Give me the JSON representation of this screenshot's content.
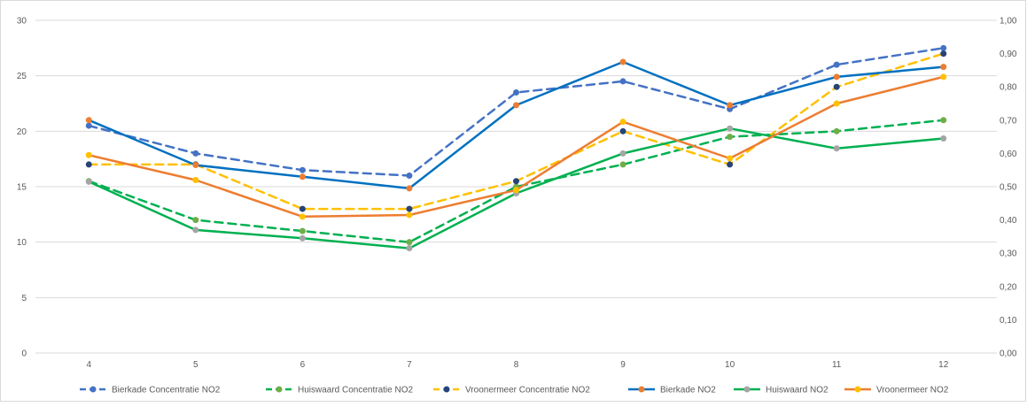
{
  "chart_data": {
    "type": "line",
    "title": "",
    "xlabel": "",
    "ylabel": "",
    "x": [
      4,
      5,
      6,
      7,
      8,
      9,
      10,
      11,
      12
    ],
    "y_left": {
      "ylim": [
        0,
        30
      ],
      "ticks": [
        "0",
        "5",
        "10",
        "15",
        "20",
        "25",
        "30"
      ]
    },
    "y_right": {
      "ylim": [
        0,
        1.0
      ],
      "ticks": [
        "0,00",
        "0,10",
        "0,20",
        "0,30",
        "0,40",
        "0,50",
        "0,60",
        "0,70",
        "0,80",
        "0,90",
        "1,00"
      ]
    },
    "grid": true,
    "legend_position": "bottom",
    "series": [
      {
        "name": "Bierkade Concentratie NO2",
        "axis": "left",
        "style": "dashed",
        "line_color": "#4472C4",
        "marker_color": "#4472C4",
        "values": [
          20.5,
          18,
          16.5,
          16,
          23.5,
          24.5,
          22,
          26,
          27.5
        ]
      },
      {
        "name": "Huiswaard Concentratie NO2",
        "axis": "left",
        "style": "dashed",
        "line_color": "#00B050",
        "marker_color": "#70AD47",
        "values": [
          15.5,
          12,
          11,
          10,
          15,
          17,
          19.5,
          20,
          21
        ]
      },
      {
        "name": "Vroonermeer Concentratie NO2",
        "axis": "left",
        "style": "dashed",
        "line_color": "#FFC000",
        "marker_color": "#264478",
        "values": [
          17,
          17,
          13,
          13,
          15.5,
          20,
          17,
          24,
          27
        ]
      },
      {
        "name": "Bierkade NO2",
        "axis": "right",
        "style": "solid",
        "line_color": "#0070C0",
        "marker_color": "#ED7D31",
        "values": [
          0.7,
          0.565,
          0.53,
          0.495,
          0.745,
          0.875,
          0.745,
          0.83,
          0.86
        ]
      },
      {
        "name": "Huiswaard NO2",
        "axis": "right",
        "style": "solid",
        "line_color": "#00B050",
        "marker_color": "#A5A5A5",
        "values": [
          0.515,
          0.37,
          0.345,
          0.315,
          0.48,
          0.6,
          0.675,
          0.615,
          0.645
        ]
      },
      {
        "name": "Vroonermeer NO2",
        "axis": "right",
        "style": "solid",
        "line_color": "#ED7D31",
        "marker_color": "#FFC000",
        "values": [
          0.595,
          0.52,
          0.41,
          0.415,
          0.49,
          0.695,
          0.585,
          0.75,
          0.83
        ]
      }
    ]
  }
}
